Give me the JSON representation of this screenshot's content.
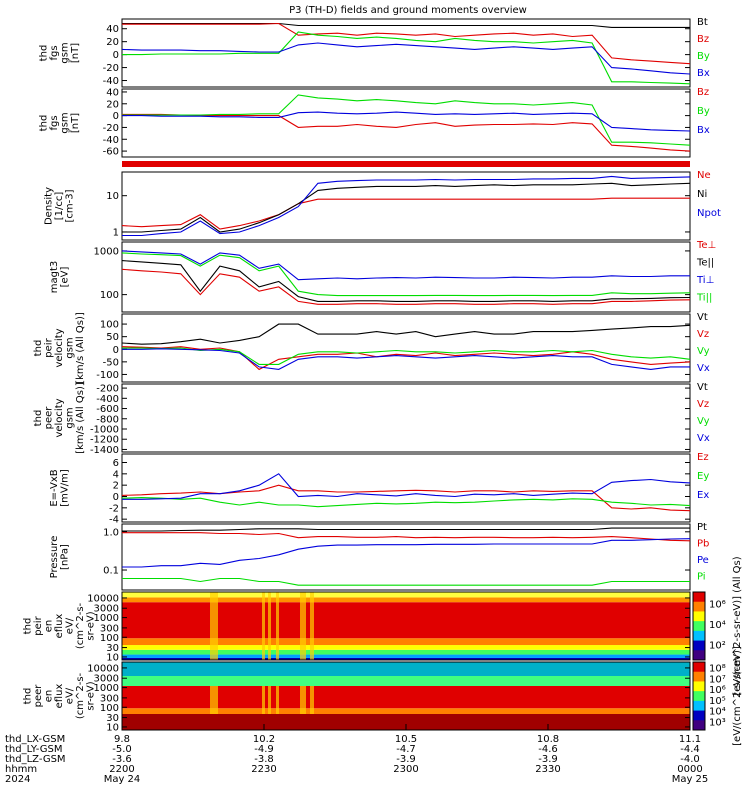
{
  "title": "P3 (TH-D) fields and ground moments overview",
  "colors": {
    "black": "#000000",
    "red": "#e00000",
    "green": "#00dd00",
    "blue": "#0000dd"
  },
  "chart_data": [
    {
      "type": "line",
      "ylabel": [
        "thd",
        "fgs",
        "gsm",
        "[nT]"
      ],
      "yticks": [
        "40",
        "20",
        "0",
        "-20",
        "-40"
      ],
      "ylim": [
        -50,
        55
      ],
      "series": [
        {
          "name": "Bt",
          "color": "black",
          "values": [
            48,
            48,
            48,
            48,
            48,
            48,
            48,
            48,
            48,
            45,
            45,
            45,
            45,
            45,
            45,
            45,
            45,
            45,
            45,
            45,
            45,
            45,
            45,
            45,
            45,
            42,
            42,
            42,
            42,
            42
          ]
        },
        {
          "name": "Bz",
          "color": "red",
          "values": [
            47,
            47,
            47,
            47,
            47,
            47,
            47,
            47,
            48,
            30,
            32,
            33,
            30,
            33,
            32,
            30,
            32,
            28,
            30,
            32,
            33,
            30,
            32,
            28,
            30,
            -5,
            -8,
            -10,
            -12,
            -14
          ]
        },
        {
          "name": "By",
          "color": "green",
          "values": [
            0,
            0,
            1,
            1,
            1,
            1,
            2,
            2,
            2,
            35,
            30,
            28,
            25,
            27,
            25,
            22,
            20,
            25,
            22,
            20,
            20,
            18,
            20,
            22,
            18,
            -42,
            -42,
            -43,
            -44,
            -45
          ]
        },
        {
          "name": "Bx",
          "color": "blue",
          "values": [
            8,
            7,
            7,
            7,
            6,
            6,
            5,
            4,
            4,
            15,
            18,
            15,
            12,
            14,
            16,
            14,
            12,
            10,
            8,
            10,
            12,
            10,
            8,
            10,
            12,
            -20,
            -22,
            -25,
            -28,
            -30
          ]
        }
      ]
    },
    {
      "type": "line",
      "ylabel": [
        "thd",
        "fgs",
        "gsm",
        "[nT]"
      ],
      "yticks": [
        "40",
        "20",
        "0",
        "-20",
        "-40",
        "-60"
      ],
      "ylim": [
        -70,
        45
      ],
      "series": [
        {
          "name": "Bz",
          "color": "red",
          "values": [
            2,
            2,
            2,
            1,
            0,
            0,
            0,
            0,
            0,
            -20,
            -18,
            -18,
            -15,
            -18,
            -20,
            -15,
            -12,
            -18,
            -16,
            -15,
            -15,
            -14,
            -15,
            -12,
            -14,
            -50,
            -52,
            -55,
            -58,
            -60
          ]
        },
        {
          "name": "By",
          "color": "green",
          "values": [
            1,
            1,
            1,
            1,
            1,
            2,
            2,
            3,
            3,
            35,
            30,
            28,
            25,
            27,
            25,
            22,
            20,
            25,
            22,
            20,
            20,
            18,
            20,
            22,
            18,
            -45,
            -45,
            -46,
            -48,
            -50
          ]
        },
        {
          "name": "Bx",
          "color": "blue",
          "values": [
            0,
            0,
            -1,
            -1,
            -1,
            -2,
            -2,
            -3,
            -3,
            5,
            6,
            4,
            3,
            4,
            6,
            4,
            2,
            3,
            2,
            3,
            4,
            2,
            3,
            4,
            3,
            -20,
            -22,
            -24,
            -25,
            -26
          ]
        }
      ]
    },
    {
      "type": "line",
      "ylabel": [
        "Density",
        "[1/cc]",
        "[cm-3]"
      ],
      "yticks": [
        "10",
        "1"
      ],
      "log": true,
      "ylim": [
        0.6,
        45
      ],
      "series": [
        {
          "name": "Ne",
          "color": "red",
          "values": [
            1.5,
            1.4,
            1.5,
            1.6,
            3.0,
            1.2,
            1.5,
            2.0,
            3.0,
            6.0,
            8.0,
            8.0,
            8.0,
            8.0,
            8.0,
            8.0,
            8.0,
            8.0,
            8.0,
            8.0,
            8.0,
            8.0,
            8.0,
            8.0,
            8.0,
            8.5,
            8.5,
            8.5,
            8.5,
            8.5
          ]
        },
        {
          "name": "Ni",
          "color": "black",
          "values": [
            1.0,
            1.0,
            1.1,
            1.2,
            2.5,
            1.0,
            1.2,
            1.8,
            3.0,
            6.0,
            14,
            16,
            17,
            18,
            18,
            18,
            19,
            18,
            19,
            20,
            19,
            20,
            20,
            20,
            21,
            22,
            19,
            20,
            21,
            22
          ]
        },
        {
          "name": "Npot",
          "color": "blue",
          "values": [
            0.8,
            0.8,
            0.9,
            1.0,
            2.0,
            0.9,
            1.0,
            1.5,
            2.5,
            5.0,
            22,
            25,
            26,
            27,
            27,
            27,
            28,
            27,
            28,
            28,
            28,
            29,
            29,
            30,
            30,
            34,
            30,
            31,
            32,
            33
          ]
        }
      ]
    },
    {
      "type": "line",
      "ylabel": [
        "magt3",
        "[eV]"
      ],
      "yticks": [
        "1000",
        "100"
      ],
      "log": true,
      "ylim": [
        40,
        1600
      ],
      "series": [
        {
          "name": "Te⊥",
          "color": "red",
          "values": [
            380,
            350,
            330,
            300,
            100,
            300,
            250,
            120,
            150,
            70,
            60,
            60,
            62,
            62,
            60,
            60,
            62,
            62,
            60,
            60,
            62,
            62,
            60,
            62,
            62,
            70,
            70,
            72,
            75,
            76
          ]
        },
        {
          "name": "Te||",
          "color": "black",
          "values": [
            600,
            560,
            520,
            480,
            120,
            450,
            350,
            150,
            200,
            90,
            70,
            70,
            72,
            72,
            70,
            70,
            72,
            72,
            70,
            70,
            72,
            72,
            70,
            72,
            72,
            80,
            80,
            82,
            85,
            86
          ]
        },
        {
          "name": "Ti⊥",
          "color": "blue",
          "values": [
            1000,
            950,
            900,
            850,
            500,
            900,
            800,
            400,
            500,
            220,
            230,
            240,
            230,
            240,
            245,
            240,
            250,
            245,
            240,
            240,
            250,
            245,
            240,
            250,
            250,
            270,
            260,
            260,
            270,
            270
          ]
        },
        {
          "name": "Ti||",
          "color": "green",
          "values": [
            900,
            850,
            820,
            780,
            450,
            800,
            700,
            350,
            450,
            120,
            100,
            95,
            95,
            95,
            95,
            95,
            96,
            96,
            95,
            95,
            96,
            96,
            95,
            96,
            96,
            110,
            105,
            105,
            108,
            110
          ]
        }
      ]
    },
    {
      "type": "line",
      "ylabel": [
        "thd",
        "peir",
        "velocity",
        "gsm",
        "[km/s (All Qs)]"
      ],
      "yticks": [
        "100",
        "50",
        "0",
        "-50",
        "-100"
      ],
      "ylim": [
        -130,
        140
      ],
      "series": [
        {
          "name": "Vt",
          "color": "black",
          "values": [
            25,
            20,
            22,
            30,
            40,
            25,
            35,
            50,
            100,
            100,
            60,
            60,
            60,
            70,
            60,
            70,
            50,
            60,
            70,
            60,
            60,
            70,
            70,
            70,
            75,
            80,
            85,
            90,
            90,
            95
          ]
        },
        {
          "name": "Vz",
          "color": "red",
          "values": [
            10,
            8,
            5,
            10,
            0,
            5,
            -10,
            -80,
            -40,
            -30,
            -20,
            -20,
            -15,
            -30,
            -20,
            -25,
            -15,
            -25,
            -20,
            -15,
            -20,
            -25,
            -20,
            -10,
            -20,
            -40,
            -50,
            -60,
            -55,
            -50
          ]
        },
        {
          "name": "Vy",
          "color": "green",
          "values": [
            5,
            5,
            3,
            5,
            -5,
            0,
            -10,
            -60,
            -60,
            -20,
            -10,
            -10,
            -15,
            -10,
            -5,
            -10,
            -10,
            -15,
            -10,
            -5,
            -10,
            -10,
            -5,
            -10,
            -5,
            -20,
            -30,
            -35,
            -30,
            -40
          ]
        },
        {
          "name": "Vx",
          "color": "blue",
          "values": [
            0,
            0,
            2,
            0,
            -2,
            -5,
            -15,
            -70,
            -80,
            -40,
            -30,
            -30,
            -35,
            -30,
            -25,
            -30,
            -35,
            -30,
            -25,
            -30,
            -35,
            -30,
            -25,
            -30,
            -30,
            -60,
            -70,
            -80,
            -70,
            -70
          ]
        }
      ]
    },
    {
      "type": "line",
      "ylabel": [
        "thd",
        "peer",
        "velocity",
        "gsm",
        "[km/s (All Qs)]"
      ],
      "yticks": [
        "-200",
        "-400",
        "-600",
        "-800",
        "-1000",
        "-1200",
        "-1400"
      ],
      "ylim": [
        -1450,
        -120
      ],
      "series": [
        {
          "name": "Vt",
          "color": "black",
          "values": []
        },
        {
          "name": "Vz",
          "color": "red",
          "values": []
        },
        {
          "name": "Vy",
          "color": "green",
          "values": []
        },
        {
          "name": "Vx",
          "color": "blue",
          "values": []
        }
      ]
    },
    {
      "type": "line",
      "ylabel": [
        "E=-VxB",
        "[mV/m]"
      ],
      "yticks": [
        "6",
        "4",
        "2",
        "0",
        "-2",
        "-4"
      ],
      "ylim": [
        -4.5,
        7.5
      ],
      "series": [
        {
          "name": "Ez",
          "color": "red",
          "values": [
            0.2,
            0.3,
            0.5,
            0.6,
            0.8,
            0.5,
            0.8,
            1.0,
            2.0,
            1.0,
            1.0,
            0.8,
            0.8,
            0.9,
            1.0,
            1.1,
            1.0,
            0.8,
            1.0,
            1.0,
            0.8,
            1.0,
            0.9,
            1.0,
            1.0,
            -2.0,
            -2.2,
            -2.0,
            -2.4,
            -2.5
          ]
        },
        {
          "name": "Ey",
          "color": "green",
          "values": [
            -0.3,
            -0.2,
            -0.3,
            -0.5,
            -0.3,
            -1.0,
            -1.5,
            -1.0,
            -1.5,
            -1.5,
            -1.8,
            -1.6,
            -1.4,
            -1.2,
            -1.3,
            -1.2,
            -1.0,
            -1.1,
            -1.0,
            -0.8,
            -0.6,
            -0.5,
            -0.6,
            -0.4,
            -0.5,
            -1.0,
            -1.2,
            -1.5,
            -1.4,
            -1.6
          ]
        },
        {
          "name": "Ex",
          "color": "blue",
          "values": [
            -0.5,
            -0.5,
            -0.4,
            -0.3,
            0.5,
            0.5,
            1.0,
            2.0,
            4.0,
            0.0,
            0.2,
            0.0,
            0.5,
            0.3,
            0.1,
            0.5,
            0.2,
            0.0,
            0.4,
            0.3,
            0.5,
            0.2,
            0.4,
            0.6,
            0.5,
            2.5,
            2.8,
            3.0,
            2.6,
            2.4
          ]
        }
      ]
    },
    {
      "type": "line",
      "ylabel": [
        "Pressure",
        "[nPa]"
      ],
      "yticks": [
        "1.0",
        "0.1"
      ],
      "log": true,
      "ylim": [
        0.03,
        1.6
      ],
      "series": [
        {
          "name": "Pt",
          "color": "black",
          "values": [
            1.05,
            1.05,
            1.05,
            1.08,
            1.1,
            1.1,
            1.15,
            1.2,
            1.2,
            1.2,
            1.15,
            1.15,
            1.15,
            1.15,
            1.15,
            1.15,
            1.15,
            1.15,
            1.15,
            1.15,
            1.15,
            1.15,
            1.15,
            1.15,
            1.15,
            1.25,
            1.25,
            1.25,
            1.25,
            1.25
          ]
        },
        {
          "name": "Pb",
          "color": "red",
          "values": [
            0.95,
            0.95,
            0.95,
            0.95,
            0.95,
            0.9,
            0.9,
            0.85,
            0.9,
            0.7,
            0.75,
            0.75,
            0.72,
            0.72,
            0.75,
            0.7,
            0.72,
            0.7,
            0.72,
            0.72,
            0.7,
            0.7,
            0.72,
            0.7,
            0.72,
            0.75,
            0.7,
            0.65,
            0.6,
            0.58
          ]
        },
        {
          "name": "Pe",
          "color": "blue",
          "values": [
            0.12,
            0.12,
            0.13,
            0.13,
            0.15,
            0.14,
            0.18,
            0.2,
            0.25,
            0.35,
            0.42,
            0.45,
            0.45,
            0.46,
            0.46,
            0.46,
            0.47,
            0.47,
            0.47,
            0.48,
            0.48,
            0.48,
            0.48,
            0.48,
            0.48,
            0.6,
            0.6,
            0.62,
            0.65,
            0.66
          ]
        },
        {
          "name": "Pi",
          "color": "green",
          "values": [
            0.06,
            0.06,
            0.06,
            0.06,
            0.05,
            0.06,
            0.06,
            0.05,
            0.05,
            0.04,
            0.04,
            0.04,
            0.04,
            0.04,
            0.04,
            0.04,
            0.04,
            0.04,
            0.04,
            0.04,
            0.04,
            0.04,
            0.04,
            0.04,
            0.04,
            0.05,
            0.05,
            0.05,
            0.05,
            0.05
          ]
        }
      ]
    },
    {
      "type": "heatmap",
      "ylabel": [
        "thd",
        "peir",
        "en",
        "eflux",
        "eV/",
        "(cm^2-s-",
        "sr-eV)"
      ],
      "yticks": [
        "10000",
        "3000",
        "1000",
        "300",
        "100",
        "30",
        "10"
      ],
      "log": true,
      "ylim": [
        7,
        20000
      ],
      "colorbar": {
        "label": "[eV/(cm^2-s-sr-eV)] (All Qs)",
        "ticks": [
          "10⁶",
          "10⁴",
          "10²"
        ]
      }
    },
    {
      "type": "heatmap",
      "ylabel": [
        "thd",
        "peer",
        "en",
        "eflux",
        "eV/",
        "(cm^2-s-",
        "sr-eV)"
      ],
      "yticks": [
        "10000",
        "3000",
        "1000",
        "300",
        "100",
        "30",
        "10"
      ],
      "log": true,
      "ylim": [
        7,
        20000
      ],
      "colorbar": {
        "label": "[eV/(cm^2-s-sr-eV)]",
        "ticks": [
          "10⁸",
          "10⁷",
          "10⁶",
          "10⁵",
          "10⁴",
          "10³"
        ]
      }
    }
  ],
  "x_axis": {
    "ticks": [
      {
        "x": "9.8",
        "y": "-5.0",
        "z": "-3.6",
        "hhmm": "2200",
        "date": "May 24"
      },
      {
        "x": "10.2",
        "y": "-4.9",
        "z": "-3.8",
        "hhmm": "2230",
        "date": ""
      },
      {
        "x": "10.5",
        "y": "-4.7",
        "z": "-3.9",
        "hhmm": "2300",
        "date": ""
      },
      {
        "x": "10.8",
        "y": "-4.6",
        "z": "-3.9",
        "hhmm": "2330",
        "date": ""
      },
      {
        "x": "11.1",
        "y": "-4.4",
        "z": "-4.0",
        "hhmm": "0000",
        "date": "May 25"
      }
    ],
    "row_labels": [
      "thd_LX-GSM",
      "thd_LY-GSM",
      "thd_LZ-GSM",
      "hhmm",
      "2024"
    ]
  }
}
